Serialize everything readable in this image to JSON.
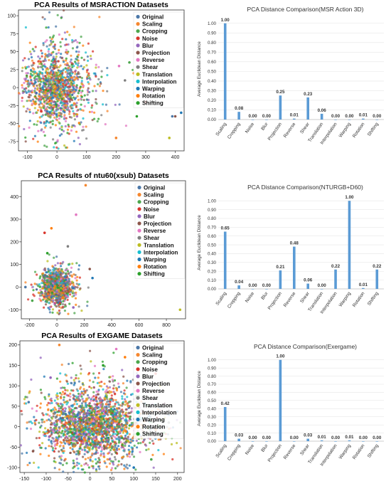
{
  "colors": {
    "Original": "#4c78a8",
    "Scaling": "#f5872f",
    "Cropping": "#4ca64c",
    "Noise": "#d9342b",
    "Blur": "#9467bd",
    "Projection": "#8c564b",
    "Reverse": "#e377c2",
    "Shear": "#7f7f7f",
    "Translation": "#bcbd22",
    "Interpolation": "#17becf",
    "Warping": "#1f77b4",
    "Rotation": "#ff7f0e",
    "Shifting": "#2ca02c",
    "bar": "#5b9bd5"
  },
  "chart_data": [
    {
      "type": "scatter",
      "title": "PCA Results of MSRACTION Datasets",
      "xlabel": "",
      "ylabel": "",
      "xticks": [
        -100,
        0,
        100,
        200,
        300,
        400
      ],
      "yticks": [
        -75,
        -50,
        -25,
        0,
        25,
        50,
        75,
        100
      ],
      "xlim": [
        -130,
        430
      ],
      "ylim": [
        -88,
        108
      ],
      "legend_position": "top-right",
      "legend": [
        "Original",
        "Scaling",
        "Cropping",
        "Noise",
        "Blur",
        "Projection",
        "Reverse",
        "Shear",
        "Translation",
        "Interpolation",
        "Warping",
        "Rotation",
        "Shifting"
      ],
      "cloud": {
        "cx": 0,
        "cy": 0,
        "sx": 55,
        "sy": 28,
        "n": 1300,
        "seed": 11
      },
      "outliers": [
        [
          200,
          -70
        ],
        [
          210,
          30
        ],
        [
          260,
          20
        ],
        [
          300,
          -20
        ],
        [
          380,
          -70
        ],
        [
          390,
          -40
        ],
        [
          400,
          -40
        ],
        [
          420,
          -35
        ],
        [
          245,
          35
        ],
        [
          230,
          10
        ],
        [
          270,
          -40
        ],
        [
          320,
          -5
        ]
      ]
    },
    {
      "type": "bar",
      "title": "PCA Distance Comparison(MSR Action 3D)",
      "ylabel": "Average Euclidean Distance",
      "categories": [
        "Scaling",
        "Cropping",
        "Noise",
        "Blur",
        "Projection",
        "Reverse",
        "Shear",
        "Translation",
        "Interpolation",
        "Warping",
        "Rotation",
        "Shifting"
      ],
      "values": [
        1.0,
        0.08,
        0.0,
        0.0,
        0.25,
        0.01,
        0.23,
        0.06,
        0.0,
        0.0,
        0.01,
        0.0
      ],
      "value_labels": [
        "1.00",
        "0.08",
        "0.00",
        "0.00",
        "0.25",
        "0.01",
        "0.23",
        "0.06",
        "0.00",
        "0.00",
        "0.01",
        "0.00"
      ],
      "yticks": [
        "0.00",
        "0.10",
        "0.20",
        "0.30",
        "0.40",
        "0.50",
        "0.60",
        "0.70",
        "0.80",
        "0.90",
        "1.00"
      ],
      "ylim": [
        0,
        1.05
      ]
    },
    {
      "type": "scatter",
      "title": "PCA Results of ntu60(xsub) Datasets",
      "xlabel": "",
      "ylabel": "",
      "xticks": [
        -200,
        0,
        200,
        400,
        600,
        800
      ],
      "yticks": [
        -100,
        0,
        100,
        200,
        300,
        400
      ],
      "xlim": [
        -260,
        940
      ],
      "ylim": [
        -140,
        470
      ],
      "legend_position": "top-right",
      "legend": [
        "Original",
        "Scaling",
        "Cropping",
        "Noise",
        "Blur",
        "Projection",
        "Reverse",
        "Shear",
        "Translation",
        "Interpolation",
        "Warping",
        "Rotation",
        "Shifting"
      ],
      "cloud": {
        "cx": 0,
        "cy": 0,
        "sx": 55,
        "sy": 35,
        "n": 1100,
        "seed": 23
      },
      "outliers": [
        [
          210,
          450
        ],
        [
          140,
          320
        ],
        [
          -40,
          260
        ],
        [
          -90,
          240
        ],
        [
          900,
          -100
        ],
        [
          -230,
          0
        ],
        [
          240,
          80
        ],
        [
          260,
          40
        ],
        [
          -180,
          -60
        ],
        [
          80,
          180
        ],
        [
          -70,
          150
        ],
        [
          120,
          -90
        ]
      ]
    },
    {
      "type": "bar",
      "title": "PCA Distance Comparison(NTURGB+D60)",
      "ylabel": "Average Euclidean Distance",
      "categories": [
        "Scaling",
        "Cropping",
        "Noise",
        "Blur",
        "Projection",
        "Reverse",
        "Shear",
        "Translation",
        "Interpolation",
        "Warping",
        "Rotation",
        "Shifting"
      ],
      "values": [
        0.65,
        0.04,
        0.0,
        0.0,
        0.21,
        0.48,
        0.06,
        0.0,
        0.22,
        1.0,
        0.01,
        0.22
      ],
      "value_labels": [
        "0.65",
        "0.04",
        "0.00",
        "0.00",
        "0.21",
        "0.48",
        "0.06",
        "0.00",
        "0.22",
        "1.00",
        "0.01",
        "0.22"
      ],
      "yticks": [
        "0.00",
        "0.10",
        "0.20",
        "0.30",
        "0.40",
        "0.50",
        "0.60",
        "0.70",
        "0.80",
        "0.90",
        "1.00"
      ],
      "ylim": [
        0,
        1.05
      ]
    },
    {
      "type": "scatter",
      "title": "PCA Results of EXGAME Datasets",
      "xlabel": "",
      "ylabel": "",
      "xticks": [
        -150,
        -100,
        -50,
        0,
        50,
        100,
        150,
        200
      ],
      "yticks": [
        -100,
        -50,
        0,
        50,
        100,
        150,
        200
      ],
      "xlim": [
        -160,
        215
      ],
      "ylim": [
        -112,
        210
      ],
      "legend_position": "top-right",
      "legend": [
        "Original",
        "Scaling",
        "Cropping",
        "Noise",
        "Blur",
        "Projection",
        "Reverse",
        "Shear",
        "Translation",
        "Interpolation",
        "Warping",
        "Rotation",
        "Shifting"
      ],
      "cloud": {
        "cx": 5,
        "cy": 5,
        "sx": 60,
        "sy": 45,
        "n": 2200,
        "seed": 37
      },
      "outliers": [
        [
          -70,
          200
        ],
        [
          60,
          190
        ],
        [
          80,
          170
        ],
        [
          150,
          130
        ],
        [
          160,
          100
        ],
        [
          -140,
          60
        ],
        [
          -130,
          -60
        ],
        [
          100,
          -100
        ],
        [
          140,
          -80
        ],
        [
          180,
          10
        ],
        [
          30,
          150
        ],
        [
          -90,
          120
        ]
      ]
    },
    {
      "type": "bar",
      "title": "PCA Distance Comparison(Exergame)",
      "ylabel": "Average Euclidean Distance",
      "categories": [
        "Scaling",
        "Cropping",
        "Noise",
        "Blur",
        "Projection",
        "Reverse",
        "Shear",
        "Translation",
        "Interpolation",
        "Warping",
        "Rotation",
        "Shifting"
      ],
      "values": [
        0.42,
        0.03,
        0.0,
        0.0,
        1.0,
        0.0,
        0.03,
        0.01,
        0.0,
        0.01,
        0.0,
        0.0
      ],
      "value_labels": [
        "0.42",
        "0.03",
        "0.00",
        "0.00",
        "1.00",
        "0.00",
        "0.03",
        "0.01",
        "0.00",
        "0.01",
        "0.00",
        "0.00"
      ],
      "yticks": [
        "0.00",
        "0.10",
        "0.20",
        "0.30",
        "0.40",
        "0.50",
        "0.60",
        "0.70",
        "0.80",
        "0.90",
        "1.00"
      ],
      "ylim": [
        0,
        1.05
      ]
    }
  ]
}
